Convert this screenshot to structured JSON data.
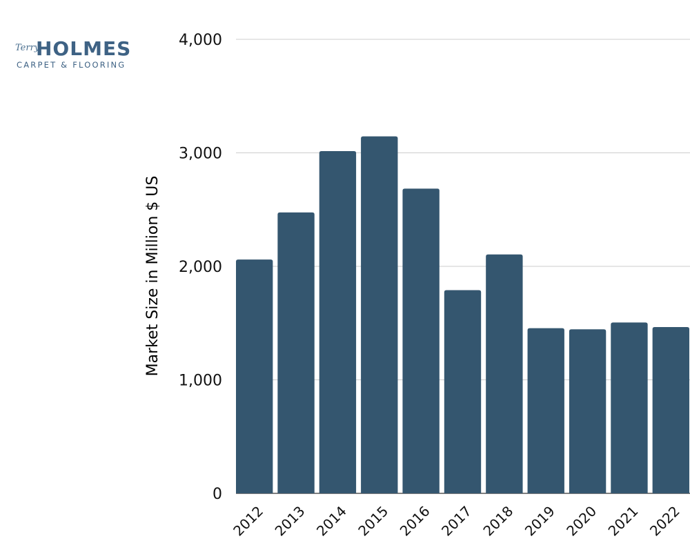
{
  "logo": {
    "script_text": "Terry",
    "name": "HOLMES",
    "tagline": "CARPET & FLOORING"
  },
  "colors": {
    "bar": "#34566f",
    "grid": "#cccccc",
    "logo": "#3e6284"
  },
  "chart_data": {
    "type": "bar",
    "title": "",
    "xlabel": "",
    "ylabel": "Market Size in Million $ US",
    "categories": [
      "2012",
      "2013",
      "2014",
      "2015",
      "2016",
      "2017",
      "2018",
      "2019",
      "2020",
      "2021",
      "2022"
    ],
    "values": [
      2060,
      2475,
      3015,
      3145,
      2685,
      1790,
      2105,
      1455,
      1445,
      1505,
      1465
    ],
    "ylim": [
      0,
      4000
    ],
    "yticks": [
      0,
      1000,
      2000,
      3000,
      4000
    ],
    "ytick_labels": [
      "0",
      "1,000",
      "2,000",
      "3,000",
      "4,000"
    ],
    "grid": true,
    "legend": "none"
  }
}
